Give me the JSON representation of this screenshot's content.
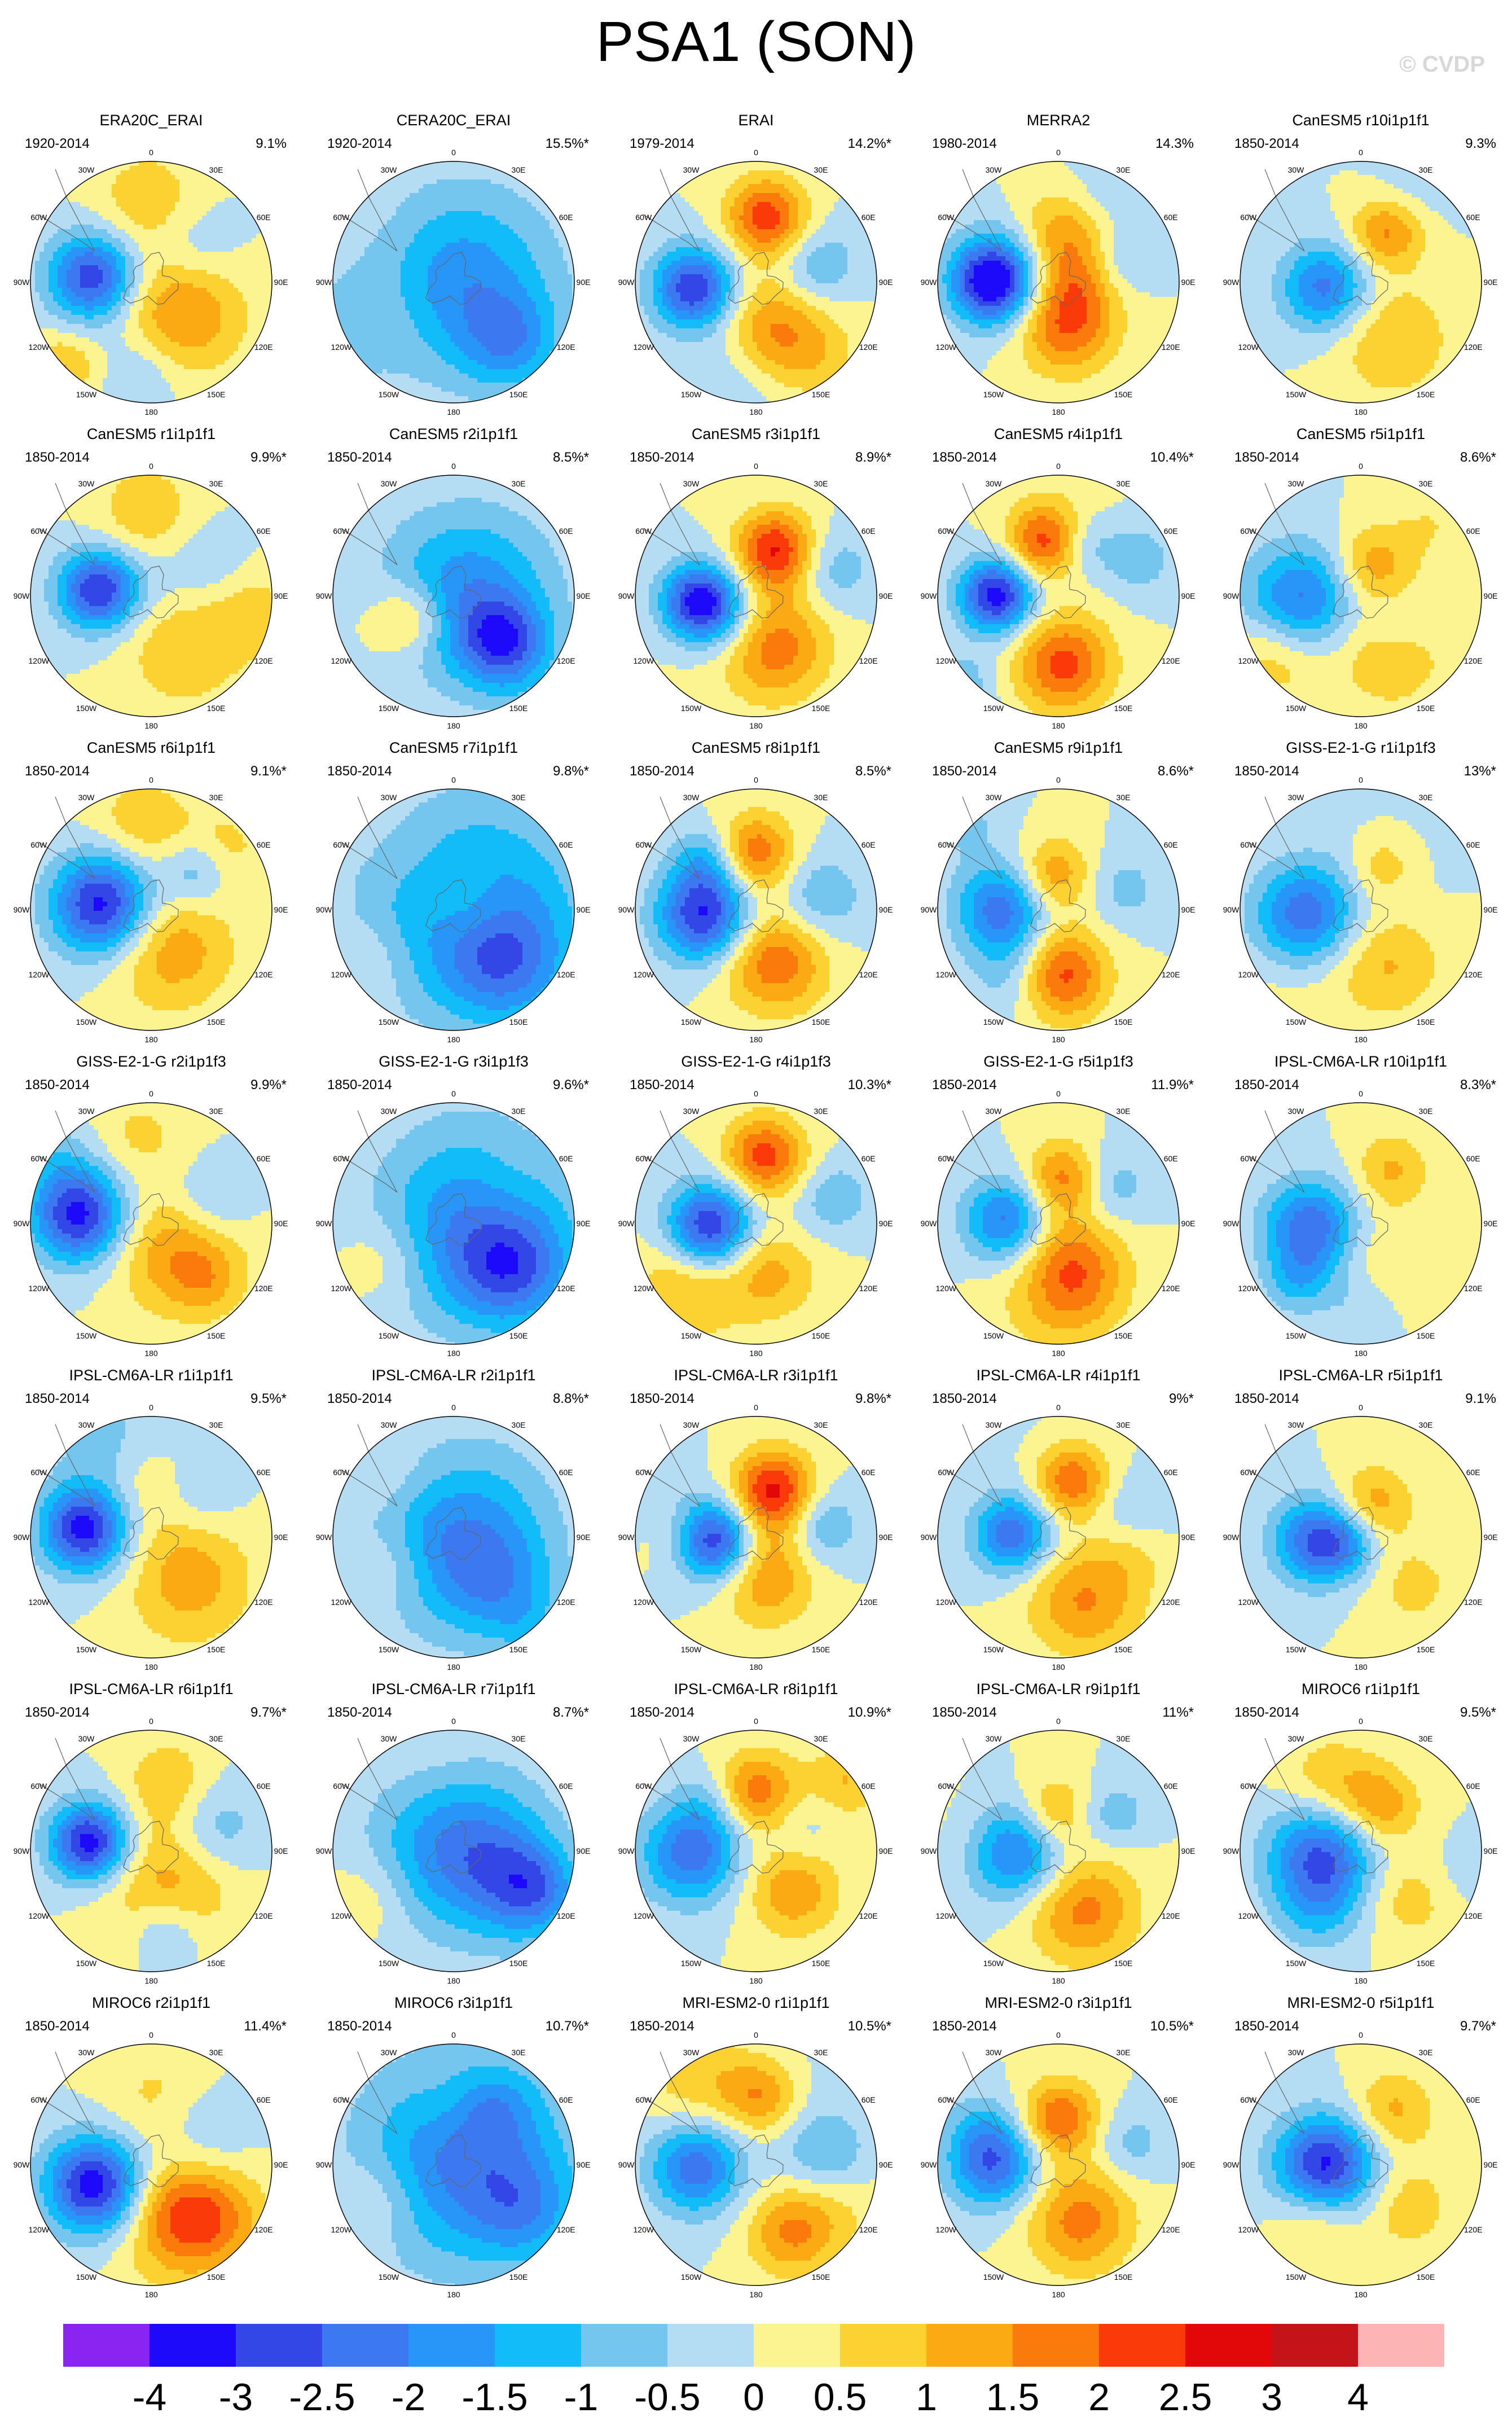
{
  "title": "PSA1 (SON)",
  "watermark": "© CVDP",
  "map_grid_labels": {
    "0": "0",
    "30E": "30E",
    "60E": "60E",
    "90E": "90E",
    "120E": "120E",
    "150E": "150E",
    "180": "180",
    "150W": "150W",
    "120W": "120W",
    "90W": "90W",
    "60W": "60W",
    "30W": "30W"
  },
  "chart_data": {
    "type": "heatmap",
    "projection": "south polar stereographic",
    "layout": {
      "rows": 7,
      "columns": 5
    },
    "colorbar": {
      "labels": [
        "-4",
        "-3",
        "-2.5",
        "-2",
        "-1.5",
        "-1",
        "-0.5",
        "0",
        "0.5",
        "1",
        "1.5",
        "2",
        "2.5",
        "3",
        "4"
      ],
      "colors": [
        "#8a24f0",
        "#1d0afa",
        "#3346e6",
        "#3c78f0",
        "#2896f8",
        "#12bcf8",
        "#74c6ee",
        "#b4dcf2",
        "#fcf490",
        "#fcd232",
        "#fcaa14",
        "#fb7a0c",
        "#fb3a0a",
        "#e2080a",
        "#c4141a",
        "#fcb4b4"
      ]
    },
    "panels": [
      {
        "title": "ERA20C_ERAI",
        "years": "1920-2014",
        "pct": "9.1%"
      },
      {
        "title": "CERA20C_ERAI",
        "years": "1920-2014",
        "pct": "15.5%*"
      },
      {
        "title": "ERAI",
        "years": "1979-2014",
        "pct": "14.2%*"
      },
      {
        "title": "MERRA2",
        "years": "1980-2014",
        "pct": "14.3%"
      },
      {
        "title": "CanESM5 r10i1p1f1",
        "years": "1850-2014",
        "pct": "9.3%"
      },
      {
        "title": "CanESM5 r1i1p1f1",
        "years": "1850-2014",
        "pct": "9.9%*"
      },
      {
        "title": "CanESM5 r2i1p1f1",
        "years": "1850-2014",
        "pct": "8.5%*"
      },
      {
        "title": "CanESM5 r3i1p1f1",
        "years": "1850-2014",
        "pct": "8.9%*"
      },
      {
        "title": "CanESM5 r4i1p1f1",
        "years": "1850-2014",
        "pct": "10.4%*"
      },
      {
        "title": "CanESM5 r5i1p1f1",
        "years": "1850-2014",
        "pct": "8.6%*"
      },
      {
        "title": "CanESM5 r6i1p1f1",
        "years": "1850-2014",
        "pct": "9.1%*"
      },
      {
        "title": "CanESM5 r7i1p1f1",
        "years": "1850-2014",
        "pct": "9.8%*"
      },
      {
        "title": "CanESM5 r8i1p1f1",
        "years": "1850-2014",
        "pct": "8.5%*"
      },
      {
        "title": "CanESM5 r9i1p1f1",
        "years": "1850-2014",
        "pct": "8.6%*"
      },
      {
        "title": "GISS-E2-1-G r1i1p1f3",
        "years": "1850-2014",
        "pct": "13%*"
      },
      {
        "title": "GISS-E2-1-G r2i1p1f3",
        "years": "1850-2014",
        "pct": "9.9%*"
      },
      {
        "title": "GISS-E2-1-G r3i1p1f3",
        "years": "1850-2014",
        "pct": "9.6%*"
      },
      {
        "title": "GISS-E2-1-G r4i1p1f3",
        "years": "1850-2014",
        "pct": "10.3%*"
      },
      {
        "title": "GISS-E2-1-G r5i1p1f3",
        "years": "1850-2014",
        "pct": "11.9%*"
      },
      {
        "title": "IPSL-CM6A-LR r10i1p1f1",
        "years": "1850-2014",
        "pct": "8.3%*"
      },
      {
        "title": "IPSL-CM6A-LR r1i1p1f1",
        "years": "1850-2014",
        "pct": "9.5%*"
      },
      {
        "title": "IPSL-CM6A-LR r2i1p1f1",
        "years": "1850-2014",
        "pct": "8.8%*"
      },
      {
        "title": "IPSL-CM6A-LR r3i1p1f1",
        "years": "1850-2014",
        "pct": "9.8%*"
      },
      {
        "title": "IPSL-CM6A-LR r4i1p1f1",
        "years": "1850-2014",
        "pct": "9%*"
      },
      {
        "title": "IPSL-CM6A-LR r5i1p1f1",
        "years": "1850-2014",
        "pct": "9.1%"
      },
      {
        "title": "IPSL-CM6A-LR r6i1p1f1",
        "years": "1850-2014",
        "pct": "9.7%*"
      },
      {
        "title": "IPSL-CM6A-LR r7i1p1f1",
        "years": "1850-2014",
        "pct": "8.7%*"
      },
      {
        "title": "IPSL-CM6A-LR r8i1p1f1",
        "years": "1850-2014",
        "pct": "10.9%*"
      },
      {
        "title": "IPSL-CM6A-LR r9i1p1f1",
        "years": "1850-2014",
        "pct": "11%*"
      },
      {
        "title": "MIROC6 r1i1p1f1",
        "years": "1850-2014",
        "pct": "9.5%*"
      },
      {
        "title": "MIROC6 r2i1p1f1",
        "years": "1850-2014",
        "pct": "11.4%*"
      },
      {
        "title": "MIROC6 r3i1p1f1",
        "years": "1850-2014",
        "pct": "10.7%*"
      },
      {
        "title": "MRI-ESM2-0 r1i1p1f1",
        "years": "1850-2014",
        "pct": "10.5%*"
      },
      {
        "title": "MRI-ESM2-0 r3i1p1f1",
        "years": "1850-2014",
        "pct": "10.5%*"
      },
      {
        "title": "MRI-ESM2-0 r5i1p1f1",
        "years": "1850-2014",
        "pct": "9.7%*"
      }
    ]
  }
}
